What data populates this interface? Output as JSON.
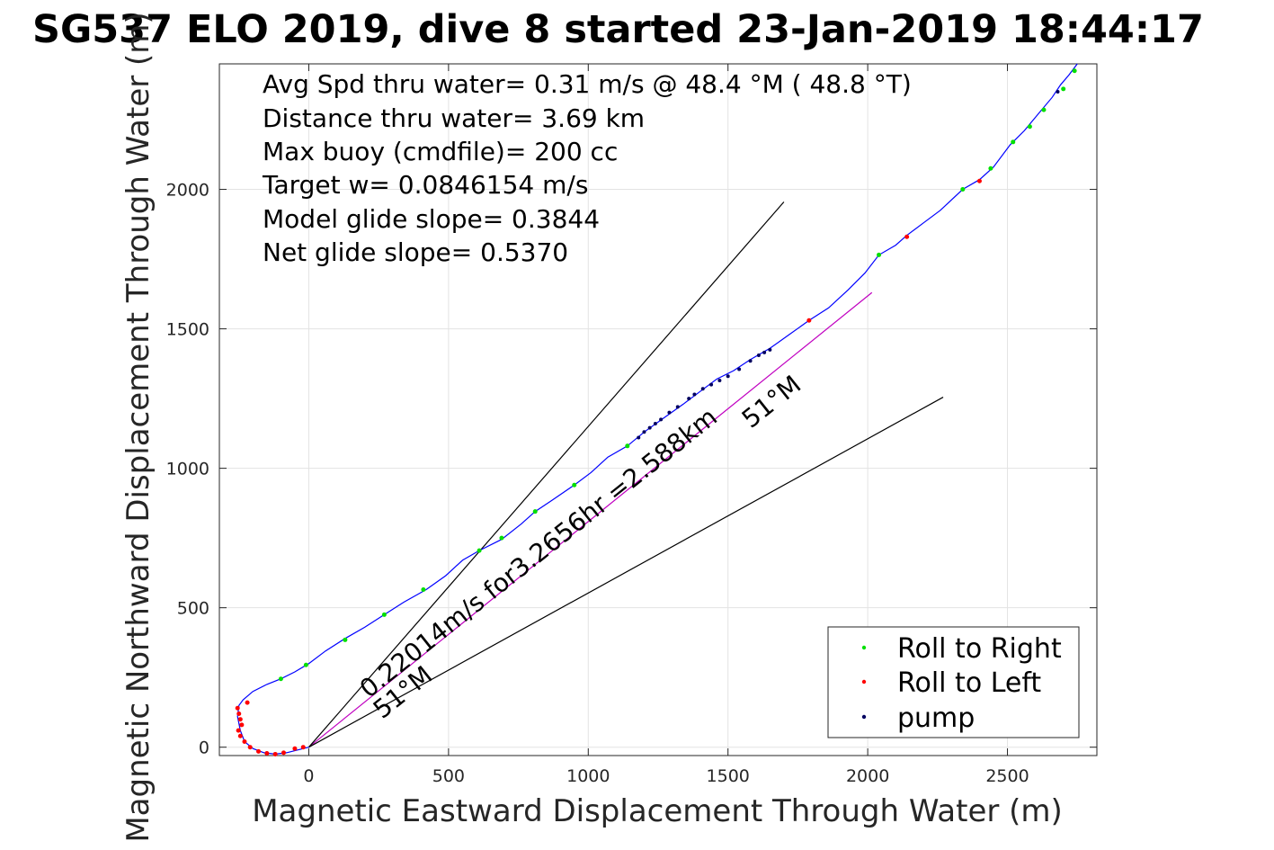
{
  "chart_data": {
    "type": "line",
    "title": "SG537 ELO 2019, dive 8 started 23-Jan-2019 18:44:17",
    "xlabel": "Magnetic Eastward Displacement Through Water (m)",
    "ylabel": "Magnetic Northward Displacement Through Water (m)",
    "xlim": [
      -320,
      2820
    ],
    "ylim": [
      -30,
      2450
    ],
    "xticks": [
      0,
      500,
      1000,
      1500,
      2000,
      2500
    ],
    "yticks": [
      0,
      500,
      1000,
      1500,
      2000
    ],
    "grid": true,
    "stats": [
      "Avg Spd thru water=  0.31 m/s @  48.4 °M ( 48.8 °T)",
      "Distance thru water=  3.69 km",
      "Max buoy (cmdfile)= 200 cc",
      "Target w= 0.0846154 m/s",
      "Model glide slope= 0.3844",
      "Net glide slope= 0.5370"
    ],
    "annotations": {
      "track_label": "0.22014m/s for3.2656hr =2.588km",
      "heading_label": "51°M",
      "heading_label_lower": "51°M"
    },
    "lines": {
      "heading": {
        "from": [
          0,
          0
        ],
        "to": [
          2015,
          1630
        ],
        "color": "#c000c0"
      },
      "fan_upper": {
        "from": [
          0,
          0
        ],
        "to": [
          1700,
          1955
        ],
        "color": "#000000"
      },
      "fan_lower": {
        "from": [
          0,
          0
        ],
        "to": [
          2270,
          1255
        ],
        "color": "#000000"
      }
    },
    "track": {
      "name": "track",
      "color": "#0000ff",
      "x": [
        0,
        -40,
        -80,
        -120,
        -160,
        -200,
        -230,
        -245,
        -255,
        -250,
        -235,
        -200,
        -150,
        -100,
        -50,
        0,
        60,
        130,
        200,
        270,
        340,
        420,
        490,
        550,
        610,
        690,
        760,
        810,
        870,
        950,
        1010,
        1070,
        1140,
        1200,
        1270,
        1340,
        1400,
        1460,
        1520,
        1580,
        1650,
        1720,
        1790,
        1860,
        1930,
        1990,
        2040,
        2100,
        2140,
        2200,
        2260,
        2340,
        2400,
        2450,
        2510,
        2560,
        2610,
        2660,
        2690,
        2720,
        2750
      ],
      "y": [
        0,
        -10,
        -20,
        -25,
        -20,
        -5,
        20,
        60,
        110,
        150,
        170,
        200,
        225,
        245,
        270,
        300,
        345,
        390,
        430,
        475,
        520,
        565,
        615,
        670,
        705,
        745,
        800,
        845,
        885,
        940,
        985,
        1040,
        1080,
        1130,
        1180,
        1230,
        1275,
        1320,
        1350,
        1390,
        1430,
        1480,
        1530,
        1575,
        1640,
        1700,
        1765,
        1800,
        1835,
        1880,
        1925,
        2000,
        2035,
        2080,
        2160,
        2210,
        2270,
        2330,
        2375,
        2410,
        2450
      ]
    },
    "markers": {
      "right": {
        "name": "Roll to Right",
        "color": "#00e000",
        "x": [
          -100,
          -10,
          130,
          270,
          410,
          610,
          690,
          810,
          950,
          1140,
          2040,
          2340,
          2440,
          2520,
          2580,
          2630,
          2700,
          2740
        ],
        "y": [
          245,
          295,
          385,
          475,
          565,
          705,
          750,
          845,
          940,
          1080,
          1765,
          2000,
          2075,
          2170,
          2225,
          2285,
          2360,
          2425
        ]
      },
      "left": {
        "name": "Roll to Left",
        "color": "#ff0000",
        "x": [
          -240,
          -245,
          -250,
          -255,
          -252,
          -245,
          -230,
          -210,
          -180,
          -150,
          -120,
          -90,
          -50,
          -20,
          -220,
          1790,
          2140,
          2400
        ],
        "y": [
          80,
          100,
          120,
          140,
          60,
          40,
          20,
          0,
          -15,
          -22,
          -25,
          -20,
          -5,
          0,
          160,
          1530,
          1830,
          2030
        ]
      },
      "pump": {
        "name": "pump",
        "color": "#000060",
        "x": [
          1180,
          1200,
          1220,
          1240,
          1260,
          1290,
          1320,
          1360,
          1380,
          1410,
          1440,
          1470,
          1500,
          1540,
          1580,
          1610,
          1630,
          1650,
          2680
        ],
        "y": [
          1110,
          1130,
          1145,
          1160,
          1175,
          1200,
          1220,
          1250,
          1265,
          1285,
          1300,
          1315,
          1330,
          1355,
          1385,
          1405,
          1415,
          1425,
          2350
        ]
      }
    },
    "legend": {
      "placement": "bottom-right",
      "entries": [
        "Roll to Right",
        "Roll to Left",
        "pump"
      ]
    }
  }
}
